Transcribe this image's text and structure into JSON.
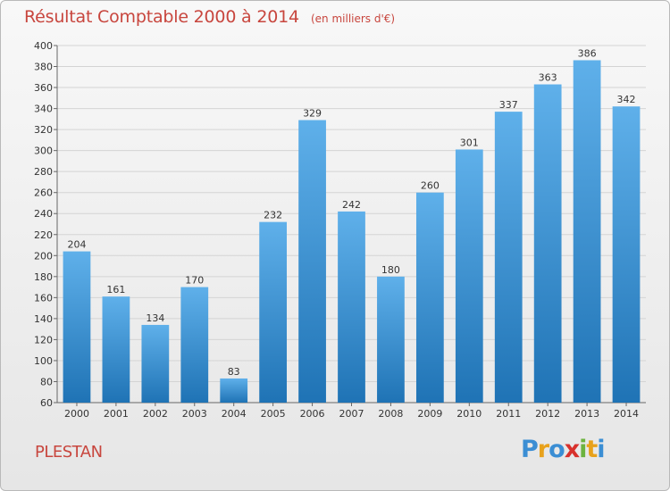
{
  "title": "Résultat Comptable 2000 à 2014",
  "subtitle": "(en milliers d'€)",
  "commune": "PLESTAN",
  "logo": {
    "text": "Proxiti",
    "letters": [
      "P",
      "r",
      "o",
      "x",
      "i",
      "t",
      "i"
    ],
    "colors": [
      "#3b8ed4",
      "#e8a21c",
      "#3b8ed4",
      "#d8312c",
      "#6cb33f",
      "#e8a21c",
      "#3b8ed4"
    ]
  },
  "colors": {
    "title": "#c8463e",
    "bar_top": "#5fb0ea",
    "bar_bottom": "#1f73b5"
  },
  "chart_data": {
    "type": "bar",
    "title": "Résultat Comptable 2000 à 2014",
    "subtitle": "(en milliers d'€)",
    "categories": [
      "2000",
      "2001",
      "2002",
      "2003",
      "2004",
      "2005",
      "2006",
      "2007",
      "2008",
      "2009",
      "2010",
      "2011",
      "2012",
      "2013",
      "2014"
    ],
    "values": [
      204,
      161,
      134,
      170,
      83,
      232,
      329,
      242,
      180,
      260,
      301,
      337,
      363,
      386,
      342
    ],
    "ylim": [
      60,
      400
    ],
    "yticks": [
      60,
      80,
      100,
      120,
      140,
      160,
      180,
      200,
      220,
      240,
      260,
      280,
      300,
      320,
      340,
      360,
      380,
      400
    ],
    "grid": true,
    "legend": "none"
  }
}
